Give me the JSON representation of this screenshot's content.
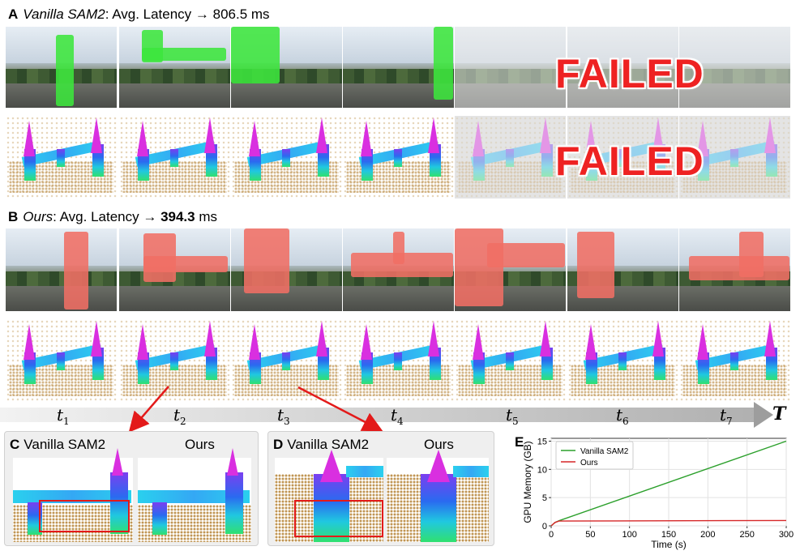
{
  "panel_a": {
    "letter": "A",
    "method": "Vanilla SAM2",
    "rest": ": Avg. Latency → 806.5 ms"
  },
  "panel_b": {
    "letter": "B",
    "method": "Ours",
    "rest": ": Avg. Latency → ",
    "value": "394.3",
    "unit": " ms"
  },
  "failed_text": "FAILED",
  "timeline": {
    "steps": [
      {
        "sym": "t",
        "sub": "1"
      },
      {
        "sym": "t",
        "sub": "2"
      },
      {
        "sym": "t",
        "sub": "3"
      },
      {
        "sym": "t",
        "sub": "4"
      },
      {
        "sym": "t",
        "sub": "5"
      },
      {
        "sym": "t",
        "sub": "6"
      },
      {
        "sym": "t",
        "sub": "7"
      }
    ],
    "end_label": "T"
  },
  "panel_c": {
    "letter": "C",
    "left_label": "Vanilla SAM2",
    "right_label": "Ours"
  },
  "panel_d": {
    "letter": "D",
    "left_label": "Vanilla SAM2",
    "right_label": "Ours"
  },
  "panel_e": {
    "letter": "E"
  },
  "colors": {
    "vanilla": "#2ca02c",
    "ours": "#d62728",
    "mask_green": "#3ce63c",
    "mask_red": "#f06e64",
    "failed": "#ee2222",
    "highlight_box": "#e31a1a"
  },
  "chart_data": {
    "type": "line",
    "xlabel": "Time (s)",
    "ylabel": "GPU Memory (GB)",
    "xlim": [
      0,
      300
    ],
    "ylim": [
      0,
      15.5
    ],
    "xticks": [
      0,
      50,
      100,
      150,
      200,
      250,
      300
    ],
    "yticks": [
      0,
      5,
      10,
      15
    ],
    "grid": true,
    "legend": "top-left",
    "series": [
      {
        "name": "Vanilla SAM2",
        "color": "#2ca02c",
        "x": [
          0,
          5,
          10,
          300
        ],
        "y": [
          0,
          0.6,
          0.9,
          15.0
        ]
      },
      {
        "name": "Ours",
        "color": "#d62728",
        "x": [
          0,
          5,
          10,
          300
        ],
        "y": [
          0,
          0.6,
          0.85,
          0.95
        ]
      }
    ]
  }
}
